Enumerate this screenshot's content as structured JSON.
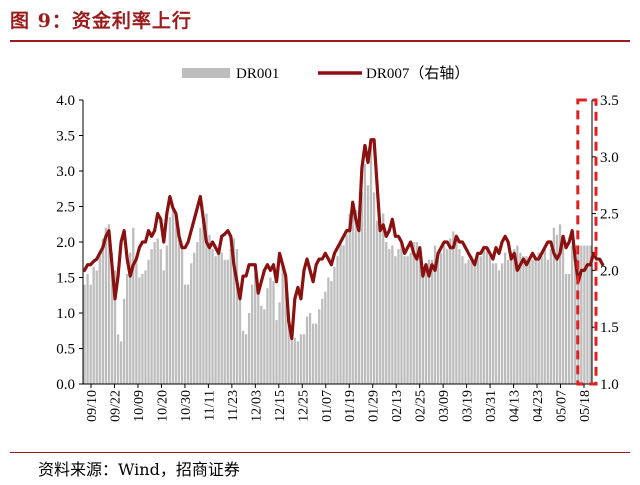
{
  "figure": {
    "title": "图 9：资金利率上行",
    "source": "资料来源：Wind，招商证券"
  },
  "chart_data": {
    "type": "bar+line",
    "legend_position": "top-center",
    "grid": false,
    "y_left": {
      "min": 0,
      "max": 4.0,
      "ticks": [
        "0.0",
        "0.5",
        "1.0",
        "1.5",
        "2.0",
        "2.5",
        "3.0",
        "3.5",
        "4.0"
      ]
    },
    "y_right": {
      "min": 1.0,
      "max": 3.5,
      "ticks": [
        "1.0",
        "1.5",
        "2.0",
        "2.5",
        "3.0",
        "3.5"
      ]
    },
    "x_ticks": [
      "09/10",
      "09/22",
      "10/09",
      "10/20",
      "10/30",
      "11/11",
      "11/23",
      "12/03",
      "12/15",
      "12/25",
      "01/07",
      "01/19",
      "01/29",
      "02/13",
      "02/25",
      "03/09",
      "03/19",
      "03/31",
      "04/13",
      "04/23",
      "05/07",
      "05/18"
    ],
    "series": [
      {
        "name": "DR001",
        "kind": "bar",
        "axis": "left",
        "color": "#bdbdbd",
        "values": [
          1.4,
          1.55,
          1.4,
          1.65,
          1.6,
          1.8,
          2.05,
          2.2,
          2.25,
          1.85,
          1.6,
          0.7,
          0.6,
          1.2,
          1.55,
          1.85,
          2.2,
          1.8,
          1.5,
          1.55,
          1.6,
          1.75,
          1.9,
          2.0,
          2.05,
          1.9,
          1.6,
          1.95,
          2.35,
          2.45,
          2.4,
          2.2,
          1.9,
          1.4,
          1.4,
          1.7,
          1.85,
          2.0,
          2.2,
          2.35,
          2.4,
          2.1,
          1.9,
          1.8,
          1.85,
          1.85,
          1.75,
          1.75,
          1.9,
          2.05,
          1.9,
          1.3,
          0.75,
          0.7,
          1.0,
          1.4,
          1.55,
          1.3,
          1.1,
          1.05,
          1.35,
          1.5,
          1.45,
          0.9,
          1.15,
          1.65,
          1.55,
          1.0,
          0.7,
          0.65,
          0.6,
          0.7,
          0.7,
          0.95,
          1.0,
          0.85,
          0.85,
          1.05,
          1.2,
          1.3,
          1.5,
          1.45,
          1.65,
          1.8,
          2.0,
          1.95,
          2.1,
          2.4,
          2.55,
          2.45,
          2.45,
          2.7,
          3.1,
          2.8,
          3.35,
          2.7,
          2.3,
          2.15,
          2.4,
          2.0,
          1.9,
          1.95,
          1.8,
          1.9,
          2.0,
          1.8,
          1.8,
          1.85,
          2.0,
          2.0,
          1.9,
          1.6,
          1.7,
          1.75,
          1.75,
          1.95,
          1.85,
          1.85,
          1.95,
          1.9,
          2.05,
          2.15,
          2.05,
          1.9,
          1.8,
          1.7,
          1.75,
          1.8,
          1.75,
          1.85,
          1.8,
          1.95,
          1.9,
          1.8,
          1.7,
          1.7,
          1.6,
          1.7,
          1.85,
          1.75,
          1.85,
          1.9,
          1.95,
          1.85,
          1.8,
          1.8,
          1.75,
          1.75,
          1.8,
          1.85,
          1.8,
          1.9,
          1.75,
          1.9,
          2.2,
          2.1,
          2.25,
          1.95,
          1.55,
          1.55,
          1.95,
          1.95,
          1.9,
          1.95,
          1.95,
          1.95,
          1.95
        ]
      },
      {
        "name": "DR007（右轴）",
        "kind": "line",
        "axis": "right",
        "color": "#8b1010",
        "values": [
          2.0,
          2.05,
          2.05,
          2.08,
          2.1,
          2.15,
          2.2,
          2.3,
          2.35,
          2.05,
          1.75,
          1.95,
          2.25,
          2.35,
          2.1,
          1.95,
          2.05,
          2.1,
          2.2,
          2.25,
          2.25,
          2.35,
          2.3,
          2.35,
          2.5,
          2.45,
          2.25,
          2.5,
          2.65,
          2.55,
          2.5,
          2.3,
          2.2,
          2.2,
          2.25,
          2.35,
          2.45,
          2.55,
          2.65,
          2.45,
          2.25,
          2.2,
          2.25,
          2.2,
          2.15,
          2.3,
          2.32,
          2.35,
          2.3,
          2.05,
          1.9,
          1.75,
          1.95,
          1.95,
          2.05,
          2.05,
          2.05,
          1.8,
          1.9,
          2.0,
          2.05,
          2.0,
          2.05,
          1.9,
          2.15,
          2.05,
          1.95,
          1.55,
          1.4,
          1.75,
          1.85,
          1.75,
          2.0,
          2.1,
          2.0,
          1.9,
          2.05,
          2.1,
          2.1,
          2.15,
          2.1,
          2.05,
          2.15,
          2.2,
          2.25,
          2.3,
          2.35,
          2.35,
          2.6,
          2.45,
          2.35,
          2.9,
          3.1,
          2.95,
          3.15,
          3.15,
          2.75,
          2.35,
          2.4,
          2.3,
          2.35,
          2.45,
          2.3,
          2.3,
          2.25,
          2.15,
          2.2,
          2.25,
          2.15,
          2.1,
          2.2,
          1.95,
          2.05,
          1.95,
          2.05,
          2.0,
          2.15,
          2.2,
          2.25,
          2.25,
          2.2,
          2.2,
          2.3,
          2.25,
          2.25,
          2.2,
          2.15,
          2.1,
          2.05,
          2.15,
          2.15,
          2.2,
          2.2,
          2.15,
          2.1,
          2.2,
          2.15,
          2.25,
          2.3,
          2.25,
          2.1,
          2.15,
          2.0,
          2.05,
          2.1,
          2.05,
          2.1,
          2.15,
          2.1,
          2.1,
          2.15,
          2.2,
          2.25,
          2.25,
          2.15,
          2.1,
          2.15,
          2.3,
          2.2,
          2.25,
          2.35,
          2.1,
          1.9,
          2.0,
          2.0,
          2.05,
          2.05,
          2.15,
          2.1,
          2.1,
          2.05
        ]
      }
    ],
    "annotation": {
      "type": "dashed-box",
      "color": "#e02020",
      "covers": "last 4 observations, full height"
    }
  }
}
